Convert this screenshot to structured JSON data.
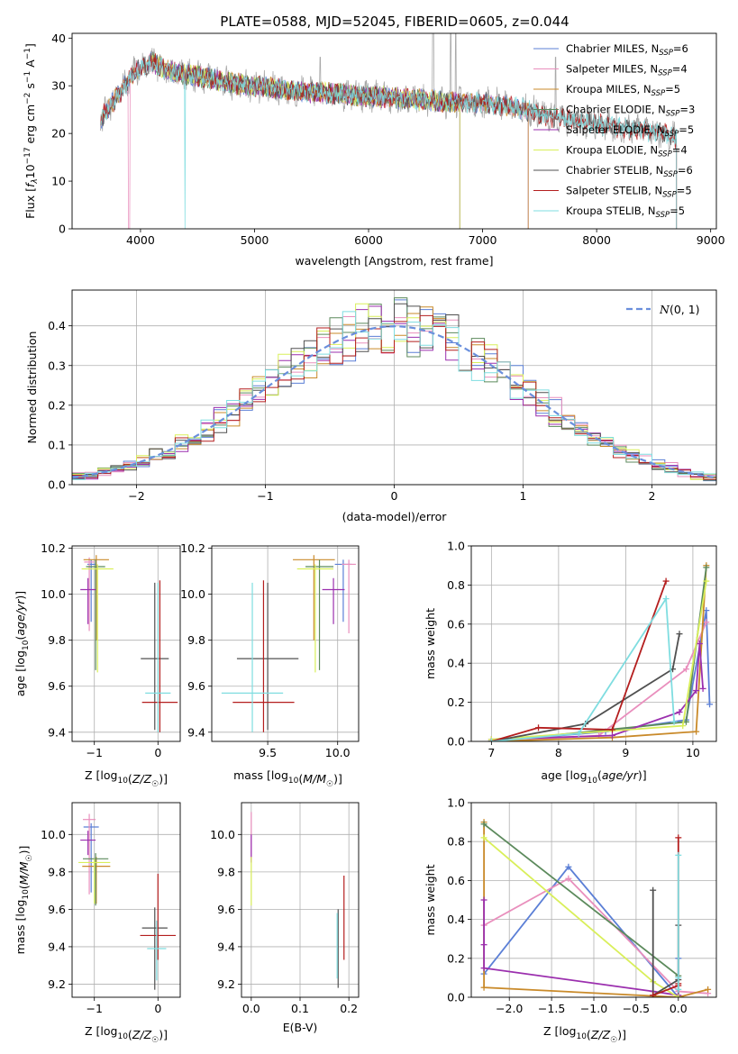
{
  "figure_title": "PLATE=0588, MJD=52045, FIBERID=0605, z=0.044",
  "colors": {
    "Chabrier MILES": "#5b7fd6",
    "Salpeter MILES": "#e98fbd",
    "Kroupa MILES": "#c98a2a",
    "Chabrier ELODIE": "#5c8a5c",
    "Salpeter ELODIE": "#9b2fae",
    "Kroupa ELODIE": "#d9ef5a",
    "Chabrier STELIB": "#505050",
    "Salpeter STELIB": "#b41e1e",
    "Kroupa STELIB": "#7fdde0",
    "normal": "#6a8fdc",
    "lw_ssp_miles_chab": "#5b7fd6",
    "sp_mw_miles_krou": "#e07f20"
  },
  "chart_data": [
    {
      "id": "spectrum",
      "type": "line",
      "title": "PLATE=0588, MJD=52045, FIBERID=0605, z=0.044",
      "xlabel": "wavelength [Angstrom, rest frame]",
      "ylabel": "Flux [f_λ10^-17 erg cm^-2 s^-1 A^-1]",
      "xlim": [
        3400,
        9050
      ],
      "ylim": [
        0,
        41
      ],
      "xticks": [
        4000,
        5000,
        6000,
        7000,
        8000,
        9000
      ],
      "yticks": [
        0,
        10,
        20,
        30,
        40
      ],
      "grid": false,
      "legend_position": "top-right",
      "continuum": {
        "x": [
          3650,
          3800,
          3950,
          4100,
          4250,
          4500,
          4800,
          5000,
          5300,
          5600,
          5900,
          6200,
          6500,
          6700,
          6800,
          7000,
          7300,
          7600,
          8000,
          8300,
          8600,
          8700
        ],
        "y": [
          23,
          28,
          33,
          35,
          33,
          32,
          30.5,
          30,
          29,
          28.5,
          28,
          27.5,
          27,
          26.5,
          26.5,
          26.5,
          25.5,
          23.5,
          22,
          21,
          20,
          19
        ]
      },
      "series": [
        {
          "name": "Chabrier MILES",
          "label": "Chabrier MILES, N",
          "sub": "SSP",
          "n": "=6",
          "x_range": [
            3650,
            7400
          ]
        },
        {
          "name": "Salpeter MILES",
          "label": "Salpeter MILES, N",
          "sub": "SSP",
          "n": "=4",
          "x_range": [
            3650,
            7400
          ]
        },
        {
          "name": "Kroupa MILES",
          "label": "Kroupa MILES, N",
          "sub": "SSP",
          "n": "=5",
          "x_range": [
            3650,
            7400
          ]
        },
        {
          "name": "Chabrier ELODIE",
          "label": "Chabrier ELODIE, N",
          "sub": "SSP",
          "n": "=3",
          "x_range": [
            4100,
            6800
          ]
        },
        {
          "name": "Salpeter ELODIE",
          "label": "Salpeter ELODIE, N",
          "sub": "SSP",
          "n": "=5",
          "x_range": [
            4100,
            6800
          ]
        },
        {
          "name": "Kroupa ELODIE",
          "label": "Kroupa ELODIE, N",
          "sub": "SSP",
          "n": "=4",
          "x_range": [
            4100,
            6800
          ]
        },
        {
          "name": "Chabrier STELIB",
          "label": "Chabrier STELIB, N",
          "sub": "SSP",
          "n": "=6",
          "x_range": [
            3650,
            8700
          ]
        },
        {
          "name": "Salpeter STELIB",
          "label": "Salpeter STELIB, N",
          "sub": "SSP",
          "n": "=5",
          "x_range": [
            3650,
            8700
          ]
        },
        {
          "name": "Kroupa STELIB",
          "label": "Kroupa STELIB, N",
          "sub": "SSP",
          "n": "=5",
          "x_range": [
            3650,
            8700
          ]
        }
      ]
    },
    {
      "id": "residuals",
      "type": "line",
      "xlabel": "(data-model)/error",
      "ylabel": "Normed distribution",
      "xlim": [
        -2.5,
        2.5
      ],
      "ylim": [
        0,
        0.49
      ],
      "xticks": [
        -2,
        -1,
        0,
        1,
        2
      ],
      "yticks": [
        0.0,
        0.1,
        0.2,
        0.3,
        0.4
      ],
      "grid": true,
      "legend_position": "top-right",
      "legend": "N(0,1)",
      "bin_width": 0.1,
      "histogram_series": [
        "Chabrier MILES",
        "Salpeter MILES",
        "Kroupa MILES",
        "Chabrier ELODIE",
        "Salpeter ELODIE",
        "Kroupa ELODIE",
        "Chabrier STELIB",
        "Salpeter STELIB",
        "Kroupa STELIB"
      ],
      "normal": {
        "mean": 0,
        "sigma": 1
      }
    },
    {
      "id": "age_vs_Z",
      "type": "scatter",
      "xlabel": "Z [log10(Z/Z☉)]",
      "ylabel": "age  [log10(age/yr)]",
      "xlim": [
        -1.35,
        0.35
      ],
      "ylim": [
        9.36,
        10.21
      ],
      "xticks": [
        -1,
        0
      ],
      "yticks": [
        9.4,
        9.6,
        9.8,
        10.0,
        10.2
      ],
      "grid": true,
      "points": [
        {
          "series": "Chabrier MILES",
          "x": -1.05,
          "y": 10.13,
          "xerr": 0.06,
          "yerr_lo": 0.25,
          "yerr_hi": 0.02
        },
        {
          "series": "Salpeter MILES",
          "x": -1.08,
          "y": 10.14,
          "xerr": 0.08,
          "yerr_lo": 0.3,
          "yerr_hi": 0.02
        },
        {
          "series": "Kroupa MILES",
          "x": -0.97,
          "y": 10.15,
          "xerr": 0.2,
          "yerr_lo": 0.35,
          "yerr_hi": 0.02
        },
        {
          "series": "Chabrier ELODIE",
          "x": -0.98,
          "y": 10.12,
          "xerr": 0.15,
          "yerr_lo": 0.45,
          "yerr_hi": 0.03
        },
        {
          "series": "Salpeter ELODIE",
          "x": -1.1,
          "y": 10.02,
          "xerr": 0.12,
          "yerr_lo": 0.15,
          "yerr_hi": 0.05
        },
        {
          "series": "Kroupa ELODIE",
          "x": -0.95,
          "y": 10.11,
          "xerr": 0.25,
          "yerr_lo": 0.45,
          "yerr_hi": 0.02
        },
        {
          "series": "Chabrier STELIB",
          "x": -0.05,
          "y": 9.72,
          "xerr": 0.22,
          "yerr_lo": 0.31,
          "yerr_hi": 0.33
        },
        {
          "series": "Salpeter STELIB",
          "x": 0.03,
          "y": 9.53,
          "xerr": 0.28,
          "yerr_lo": 0.13,
          "yerr_hi": 0.53
        },
        {
          "series": "Kroupa STELIB",
          "x": 0.0,
          "y": 9.57,
          "xerr": 0.2,
          "yerr_lo": 0.17,
          "yerr_hi": 0.48
        }
      ]
    },
    {
      "id": "age_vs_mass",
      "type": "scatter",
      "xlabel": "mass [log10(M/M☉)]",
      "ylabel": "",
      "xlim": [
        9.1,
        10.15
      ],
      "ylim": [
        9.36,
        10.21
      ],
      "xticks": [
        9.5,
        10.0
      ],
      "yticks": [
        9.4,
        9.6,
        9.8,
        10.0,
        10.2
      ],
      "grid": true,
      "points": [
        {
          "series": "Chabrier MILES",
          "x": 10.04,
          "y": 10.13,
          "xerr": 0.06,
          "yerr_lo": 0.25,
          "yerr_hi": 0.02
        },
        {
          "series": "Salpeter MILES",
          "x": 10.08,
          "y": 10.13,
          "xerr": 0.05,
          "yerr_lo": 0.3,
          "yerr_hi": 0.02
        },
        {
          "series": "Kroupa MILES",
          "x": 9.83,
          "y": 10.15,
          "xerr": 0.15,
          "yerr_lo": 0.35,
          "yerr_hi": 0.02
        },
        {
          "series": "Chabrier ELODIE",
          "x": 9.87,
          "y": 10.12,
          "xerr": 0.1,
          "yerr_lo": 0.45,
          "yerr_hi": 0.03
        },
        {
          "series": "Salpeter ELODIE",
          "x": 9.97,
          "y": 10.02,
          "xerr": 0.08,
          "yerr_lo": 0.15,
          "yerr_hi": 0.05
        },
        {
          "series": "Kroupa ELODIE",
          "x": 9.84,
          "y": 10.11,
          "xerr": 0.13,
          "yerr_lo": 0.45,
          "yerr_hi": 0.02
        },
        {
          "series": "Chabrier STELIB",
          "x": 9.5,
          "y": 9.72,
          "xerr": 0.22,
          "yerr_lo": 0.31,
          "yerr_hi": 0.33
        },
        {
          "series": "Salpeter STELIB",
          "x": 9.47,
          "y": 9.53,
          "xerr": 0.22,
          "yerr_lo": 0.13,
          "yerr_hi": 0.53
        },
        {
          "series": "Kroupa STELIB",
          "x": 9.39,
          "y": 9.57,
          "xerr": 0.22,
          "yerr_lo": 0.17,
          "yerr_hi": 0.48
        }
      ]
    },
    {
      "id": "weight_vs_age",
      "type": "line",
      "xlabel": "age  [log10(age/yr)]",
      "ylabel": "mass weight",
      "xlim": [
        6.7,
        10.35
      ],
      "ylim": [
        0,
        1.0
      ],
      "xticks": [
        7,
        8,
        9,
        10
      ],
      "yticks": [
        0.0,
        0.2,
        0.4,
        0.6,
        0.8,
        1.0
      ],
      "grid": true,
      "series": [
        {
          "name": "Chabrier MILES",
          "x": [
            7.0,
            8.7,
            9.9,
            10.2,
            10.25
          ],
          "y": [
            0.0,
            0.05,
            0.11,
            0.67,
            0.19
          ]
        },
        {
          "name": "Salpeter MILES",
          "x": [
            7.0,
            8.6,
            9.9,
            10.2
          ],
          "y": [
            0.0,
            0.03,
            0.37,
            0.61
          ]
        },
        {
          "name": "Kroupa MILES",
          "x": [
            7.0,
            8.8,
            10.05,
            10.2
          ],
          "y": [
            0.0,
            0.02,
            0.05,
            0.9
          ]
        },
        {
          "name": "Chabrier ELODIE",
          "x": [
            7.0,
            9.9,
            10.2
          ],
          "y": [
            0.0,
            0.1,
            0.89
          ]
        },
        {
          "name": "Salpeter ELODIE",
          "x": [
            7.0,
            8.8,
            9.8,
            10.05,
            10.1,
            10.15
          ],
          "y": [
            0.01,
            0.03,
            0.15,
            0.26,
            0.5,
            0.27
          ]
        },
        {
          "name": "Kroupa ELODIE",
          "x": [
            7.0,
            9.85,
            10.2
          ],
          "y": [
            0.01,
            0.08,
            0.82
          ]
        },
        {
          "name": "Chabrier STELIB",
          "x": [
            7.0,
            8.4,
            9.7,
            9.8
          ],
          "y": [
            0.0,
            0.09,
            0.37,
            0.55
          ]
        },
        {
          "name": "Salpeter STELIB",
          "x": [
            7.0,
            7.7,
            8.8,
            9.6
          ],
          "y": [
            0.0,
            0.07,
            0.06,
            0.82
          ]
        },
        {
          "name": "Kroupa STELIB",
          "x": [
            7.0,
            8.3,
            9.6,
            9.72
          ],
          "y": [
            0.0,
            0.04,
            0.73,
            0.1
          ]
        }
      ]
    },
    {
      "id": "mass_vs_Z",
      "type": "scatter",
      "xlabel": "Z [log10(Z/Z☉)]",
      "ylabel": "mass [log10(M/M☉)]",
      "xlim": [
        -1.35,
        0.35
      ],
      "ylim": [
        9.13,
        10.17
      ],
      "xticks": [
        -1,
        0
      ],
      "yticks": [
        9.2,
        9.4,
        9.6,
        9.8,
        10.0
      ],
      "grid": true,
      "points": [
        {
          "series": "Chabrier MILES",
          "x": -1.05,
          "y": 10.04,
          "xerr": 0.12,
          "yerr_lo": 0.35,
          "yerr_hi": 0.02
        },
        {
          "series": "Salpeter MILES",
          "x": -1.08,
          "y": 10.08,
          "xerr": 0.1,
          "yerr_lo": 0.4,
          "yerr_hi": 0.03
        },
        {
          "series": "Kroupa MILES",
          "x": -0.97,
          "y": 9.83,
          "xerr": 0.22,
          "yerr_lo": 0.2,
          "yerr_hi": 0.05
        },
        {
          "series": "Chabrier ELODIE",
          "x": -0.98,
          "y": 9.87,
          "xerr": 0.2,
          "yerr_lo": 0.25,
          "yerr_hi": 0.03
        },
        {
          "series": "Salpeter ELODIE",
          "x": -1.1,
          "y": 9.97,
          "xerr": 0.12,
          "yerr_lo": 0.08,
          "yerr_hi": 0.05
        },
        {
          "series": "Kroupa ELODIE",
          "x": -1.0,
          "y": 9.85,
          "xerr": 0.25,
          "yerr_lo": 0.22,
          "yerr_hi": 0.02
        },
        {
          "series": "Chabrier STELIB",
          "x": -0.05,
          "y": 9.5,
          "xerr": 0.2,
          "yerr_lo": 0.33,
          "yerr_hi": 0.11
        },
        {
          "series": "Salpeter STELIB",
          "x": 0.0,
          "y": 9.46,
          "xerr": 0.28,
          "yerr_lo": 0.13,
          "yerr_hi": 0.33
        },
        {
          "series": "Kroupa STELIB",
          "x": -0.02,
          "y": 9.39,
          "xerr": 0.15,
          "yerr_lo": 0.17,
          "yerr_hi": 0.15
        }
      ]
    },
    {
      "id": "mass_vs_EBV",
      "type": "scatter",
      "xlabel": "E(B-V)",
      "ylabel": "",
      "xlim": [
        -0.02,
        0.22
      ],
      "ylim": [
        9.13,
        10.17
      ],
      "xticks": [
        0.0,
        0.1,
        0.2
      ],
      "yticks": [
        9.2,
        9.4,
        9.6,
        9.8,
        10.0
      ],
      "grid": true,
      "points": [
        {
          "series": "Salpeter MILES",
          "x": 0.0,
          "y": 10.05,
          "xerr": 0,
          "yerr_lo": 0.2,
          "yerr_hi": 0.07
        },
        {
          "series": "Salpeter ELODIE",
          "x": 0.0,
          "y": 9.95,
          "xerr": 0,
          "yerr_lo": 0.1,
          "yerr_hi": 0.05
        },
        {
          "series": "Kroupa ELODIE",
          "x": 0.0,
          "y": 9.8,
          "xerr": 0,
          "yerr_lo": 0.18,
          "yerr_hi": 0.08
        },
        {
          "series": "Chabrier STELIB",
          "x": 0.178,
          "y": 9.4,
          "xerr": 0,
          "yerr_lo": 0.22,
          "yerr_hi": 0.2
        },
        {
          "series": "Kroupa STELIB",
          "x": 0.176,
          "y": 9.38,
          "xerr": 0,
          "yerr_lo": 0.15,
          "yerr_hi": 0.2
        },
        {
          "series": "Salpeter STELIB",
          "x": 0.19,
          "y": 9.55,
          "xerr": 0,
          "yerr_lo": 0.22,
          "yerr_hi": 0.23
        }
      ]
    },
    {
      "id": "weight_vs_Z",
      "type": "line",
      "xlabel": "Z [log10(Z/Z☉)]",
      "ylabel": "mass weight",
      "xlim": [
        -2.45,
        0.45
      ],
      "ylim": [
        0,
        1.0
      ],
      "xticks": [
        -2.0,
        -1.5,
        -1.0,
        -0.5,
        0.0
      ],
      "yticks": [
        0.0,
        0.2,
        0.4,
        0.6,
        0.8,
        1.0
      ],
      "grid": true,
      "series": [
        {
          "name": "Chabrier MILES",
          "x": [
            -2.3,
            -1.3,
            0.0,
            0.0
          ],
          "y": [
            0.12,
            0.67,
            0.0,
            0.2
          ]
        },
        {
          "name": "Salpeter MILES",
          "x": [
            -2.3,
            -1.3,
            0.0,
            0.35
          ],
          "y": [
            0.37,
            0.61,
            0.03,
            0.02
          ]
        },
        {
          "name": "Kroupa MILES",
          "x": [
            -2.3,
            -2.3,
            0.0,
            0.35
          ],
          "y": [
            0.9,
            0.05,
            0.0,
            0.04
          ]
        },
        {
          "name": "Chabrier ELODIE",
          "x": [
            -2.3,
            0.0,
            0.0
          ],
          "y": [
            0.89,
            0.11,
            0.0
          ]
        },
        {
          "name": "Salpeter ELODIE",
          "x": [
            -2.3,
            -2.3,
            -2.3,
            -0.3,
            0.0
          ],
          "y": [
            0.5,
            0.27,
            0.15,
            0.03,
            0.01
          ]
        },
        {
          "name": "Kroupa ELODIE",
          "x": [
            -2.3,
            -0.3,
            0.0
          ],
          "y": [
            0.82,
            0.08,
            0.0
          ]
        },
        {
          "name": "Chabrier STELIB",
          "x": [
            -0.3,
            -0.3,
            0.0,
            0.0
          ],
          "y": [
            0.55,
            0.01,
            0.09,
            0.37
          ]
        },
        {
          "name": "Salpeter STELIB",
          "x": [
            -0.3,
            0.0,
            0.0,
            0.0
          ],
          "y": [
            0.01,
            0.06,
            0.82,
            0.07
          ]
        },
        {
          "name": "Kroupa STELIB",
          "x": [
            0.0,
            0.0,
            0.0
          ],
          "y": [
            0.73,
            0.1,
            0.04
          ]
        }
      ]
    }
  ]
}
